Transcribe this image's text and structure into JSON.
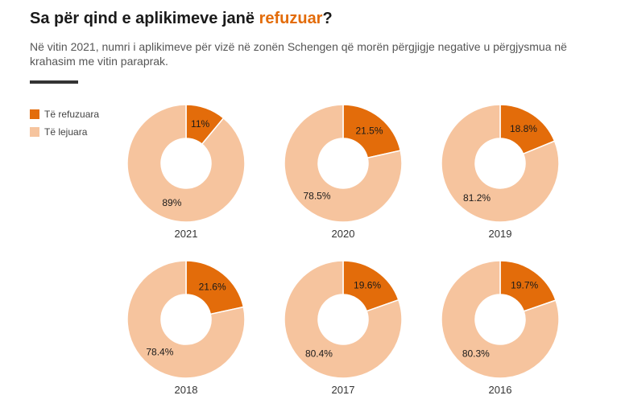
{
  "header": {
    "title_prefix": "Sa për qind e aplikimeve janë ",
    "title_highlight": "refuzuar",
    "title_suffix": "?",
    "subtitle": "Në vitin 2021, numri i aplikimeve për vizë në zonën Schengen që morën përgjigje negative u përgjysmua në krahasim me vitin paraprak."
  },
  "legend": [
    {
      "label": "Të refuzuara",
      "color": "#e36c0a"
    },
    {
      "label": "Të lejuara",
      "color": "#f6c49e"
    }
  ],
  "chart_data": {
    "type": "pie",
    "variant": "donut",
    "series_names": [
      "Të refuzuara",
      "Të lejuara"
    ],
    "colors": [
      "#e36c0a",
      "#f6c49e"
    ],
    "charts": [
      {
        "year": "2021",
        "values": [
          11,
          89
        ],
        "labels": [
          "11%",
          "89%"
        ]
      },
      {
        "year": "2020",
        "values": [
          21.5,
          78.5
        ],
        "labels": [
          "21.5%",
          "78.5%"
        ]
      },
      {
        "year": "2019",
        "values": [
          18.8,
          81.2
        ],
        "labels": [
          "18.8%",
          "81.2%"
        ]
      },
      {
        "year": "2018",
        "values": [
          21.6,
          78.4
        ],
        "labels": [
          "21.6%",
          "78.4%"
        ]
      },
      {
        "year": "2017",
        "values": [
          19.6,
          80.4
        ],
        "labels": [
          "19.6%",
          "80.4%"
        ]
      },
      {
        "year": "2016",
        "values": [
          19.7,
          80.3
        ],
        "labels": [
          "19.7%",
          "80.3%"
        ]
      }
    ]
  }
}
